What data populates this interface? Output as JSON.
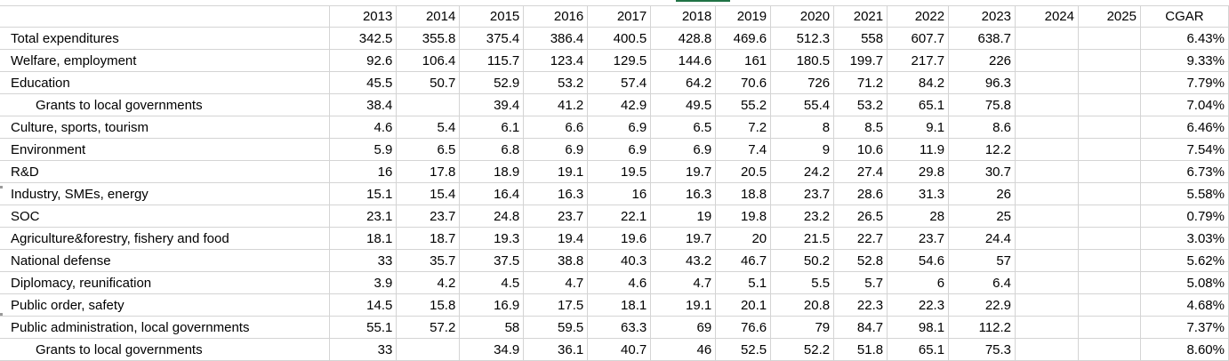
{
  "sheet": {
    "headers": [
      "",
      "2013",
      "2014",
      "2015",
      "2016",
      "2017",
      "2018",
      "2019",
      "2020",
      "2021",
      "2022",
      "2023",
      "2024",
      "2025",
      "CGAR"
    ],
    "rows": [
      {
        "label": "Total expenditures",
        "indent": false,
        "values": [
          "342.5",
          "355.8",
          "375.4",
          "386.4",
          "400.5",
          "428.8",
          "469.6",
          "512.3",
          "558",
          "607.7",
          "638.7",
          "",
          ""
        ],
        "cgar": "6.43%"
      },
      {
        "label": "Welfare, employment",
        "indent": false,
        "values": [
          "92.6",
          "106.4",
          "115.7",
          "123.4",
          "129.5",
          "144.6",
          "161",
          "180.5",
          "199.7",
          "217.7",
          "226",
          "",
          ""
        ],
        "cgar": "9.33%"
      },
      {
        "label": "Education",
        "indent": false,
        "values": [
          "45.5",
          "50.7",
          "52.9",
          "53.2",
          "57.4",
          "64.2",
          "70.6",
          "726",
          "71.2",
          "84.2",
          "96.3",
          "",
          ""
        ],
        "cgar": "7.79%"
      },
      {
        "label": "Grants to local governments",
        "indent": true,
        "values": [
          "38.4",
          "",
          "39.4",
          "41.2",
          "42.9",
          "49.5",
          "55.2",
          "55.4",
          "53.2",
          "65.1",
          "75.8",
          "",
          ""
        ],
        "cgar": "7.04%"
      },
      {
        "label": "Culture, sports, tourism",
        "indent": false,
        "values": [
          "4.6",
          "5.4",
          "6.1",
          "6.6",
          "6.9",
          "6.5",
          "7.2",
          "8",
          "8.5",
          "9.1",
          "8.6",
          "",
          ""
        ],
        "cgar": "6.46%"
      },
      {
        "label": "Environment",
        "indent": false,
        "values": [
          "5.9",
          "6.5",
          "6.8",
          "6.9",
          "6.9",
          "6.9",
          "7.4",
          "9",
          "10.6",
          "11.9",
          "12.2",
          "",
          ""
        ],
        "cgar": "7.54%"
      },
      {
        "label": "R&D",
        "indent": false,
        "values": [
          "16",
          "17.8",
          "18.9",
          "19.1",
          "19.5",
          "19.7",
          "20.5",
          "24.2",
          "27.4",
          "29.8",
          "30.7",
          "",
          ""
        ],
        "cgar": "6.73%"
      },
      {
        "label": "Industry, SMEs, energy",
        "indent": false,
        "values": [
          "15.1",
          "15.4",
          "16.4",
          "16.3",
          "16",
          "16.3",
          "18.8",
          "23.7",
          "28.6",
          "31.3",
          "26",
          "",
          ""
        ],
        "cgar": "5.58%"
      },
      {
        "label": "SOC",
        "indent": false,
        "values": [
          "23.1",
          "23.7",
          "24.8",
          "23.7",
          "22.1",
          "19",
          "19.8",
          "23.2",
          "26.5",
          "28",
          "25",
          "",
          ""
        ],
        "cgar": "0.79%"
      },
      {
        "label": "Agriculture&forestry, fishery and food",
        "indent": false,
        "values": [
          "18.1",
          "18.7",
          "19.3",
          "19.4",
          "19.6",
          "19.7",
          "20",
          "21.5",
          "22.7",
          "23.7",
          "24.4",
          "",
          ""
        ],
        "cgar": "3.03%"
      },
      {
        "label": "National defense",
        "indent": false,
        "values": [
          "33",
          "35.7",
          "37.5",
          "38.8",
          "40.3",
          "43.2",
          "46.7",
          "50.2",
          "52.8",
          "54.6",
          "57",
          "",
          ""
        ],
        "cgar": "5.62%"
      },
      {
        "label": "Diplomacy, reunification",
        "indent": false,
        "values": [
          "3.9",
          "4.2",
          "4.5",
          "4.7",
          "4.6",
          "4.7",
          "5.1",
          "5.5",
          "5.7",
          "6",
          "6.4",
          "",
          ""
        ],
        "cgar": "5.08%"
      },
      {
        "label": "Public order, safety",
        "indent": false,
        "values": [
          "14.5",
          "15.8",
          "16.9",
          "17.5",
          "18.1",
          "19.1",
          "20.1",
          "20.8",
          "22.3",
          "22.3",
          "22.9",
          "",
          ""
        ],
        "cgar": "4.68%"
      },
      {
        "label": "Public administration, local governments",
        "indent": false,
        "values": [
          "55.1",
          "57.2",
          "58",
          "59.5",
          "63.3",
          "69",
          "76.6",
          "79",
          "84.7",
          "98.1",
          "112.2",
          "",
          ""
        ],
        "cgar": "7.37%"
      },
      {
        "label": "Grants to local governments",
        "indent": true,
        "values": [
          "33",
          "",
          "34.9",
          "36.1",
          "40.7",
          "46",
          "52.5",
          "52.2",
          "51.8",
          "65.1",
          "75.3",
          "",
          ""
        ],
        "cgar": "8.60%"
      }
    ]
  }
}
